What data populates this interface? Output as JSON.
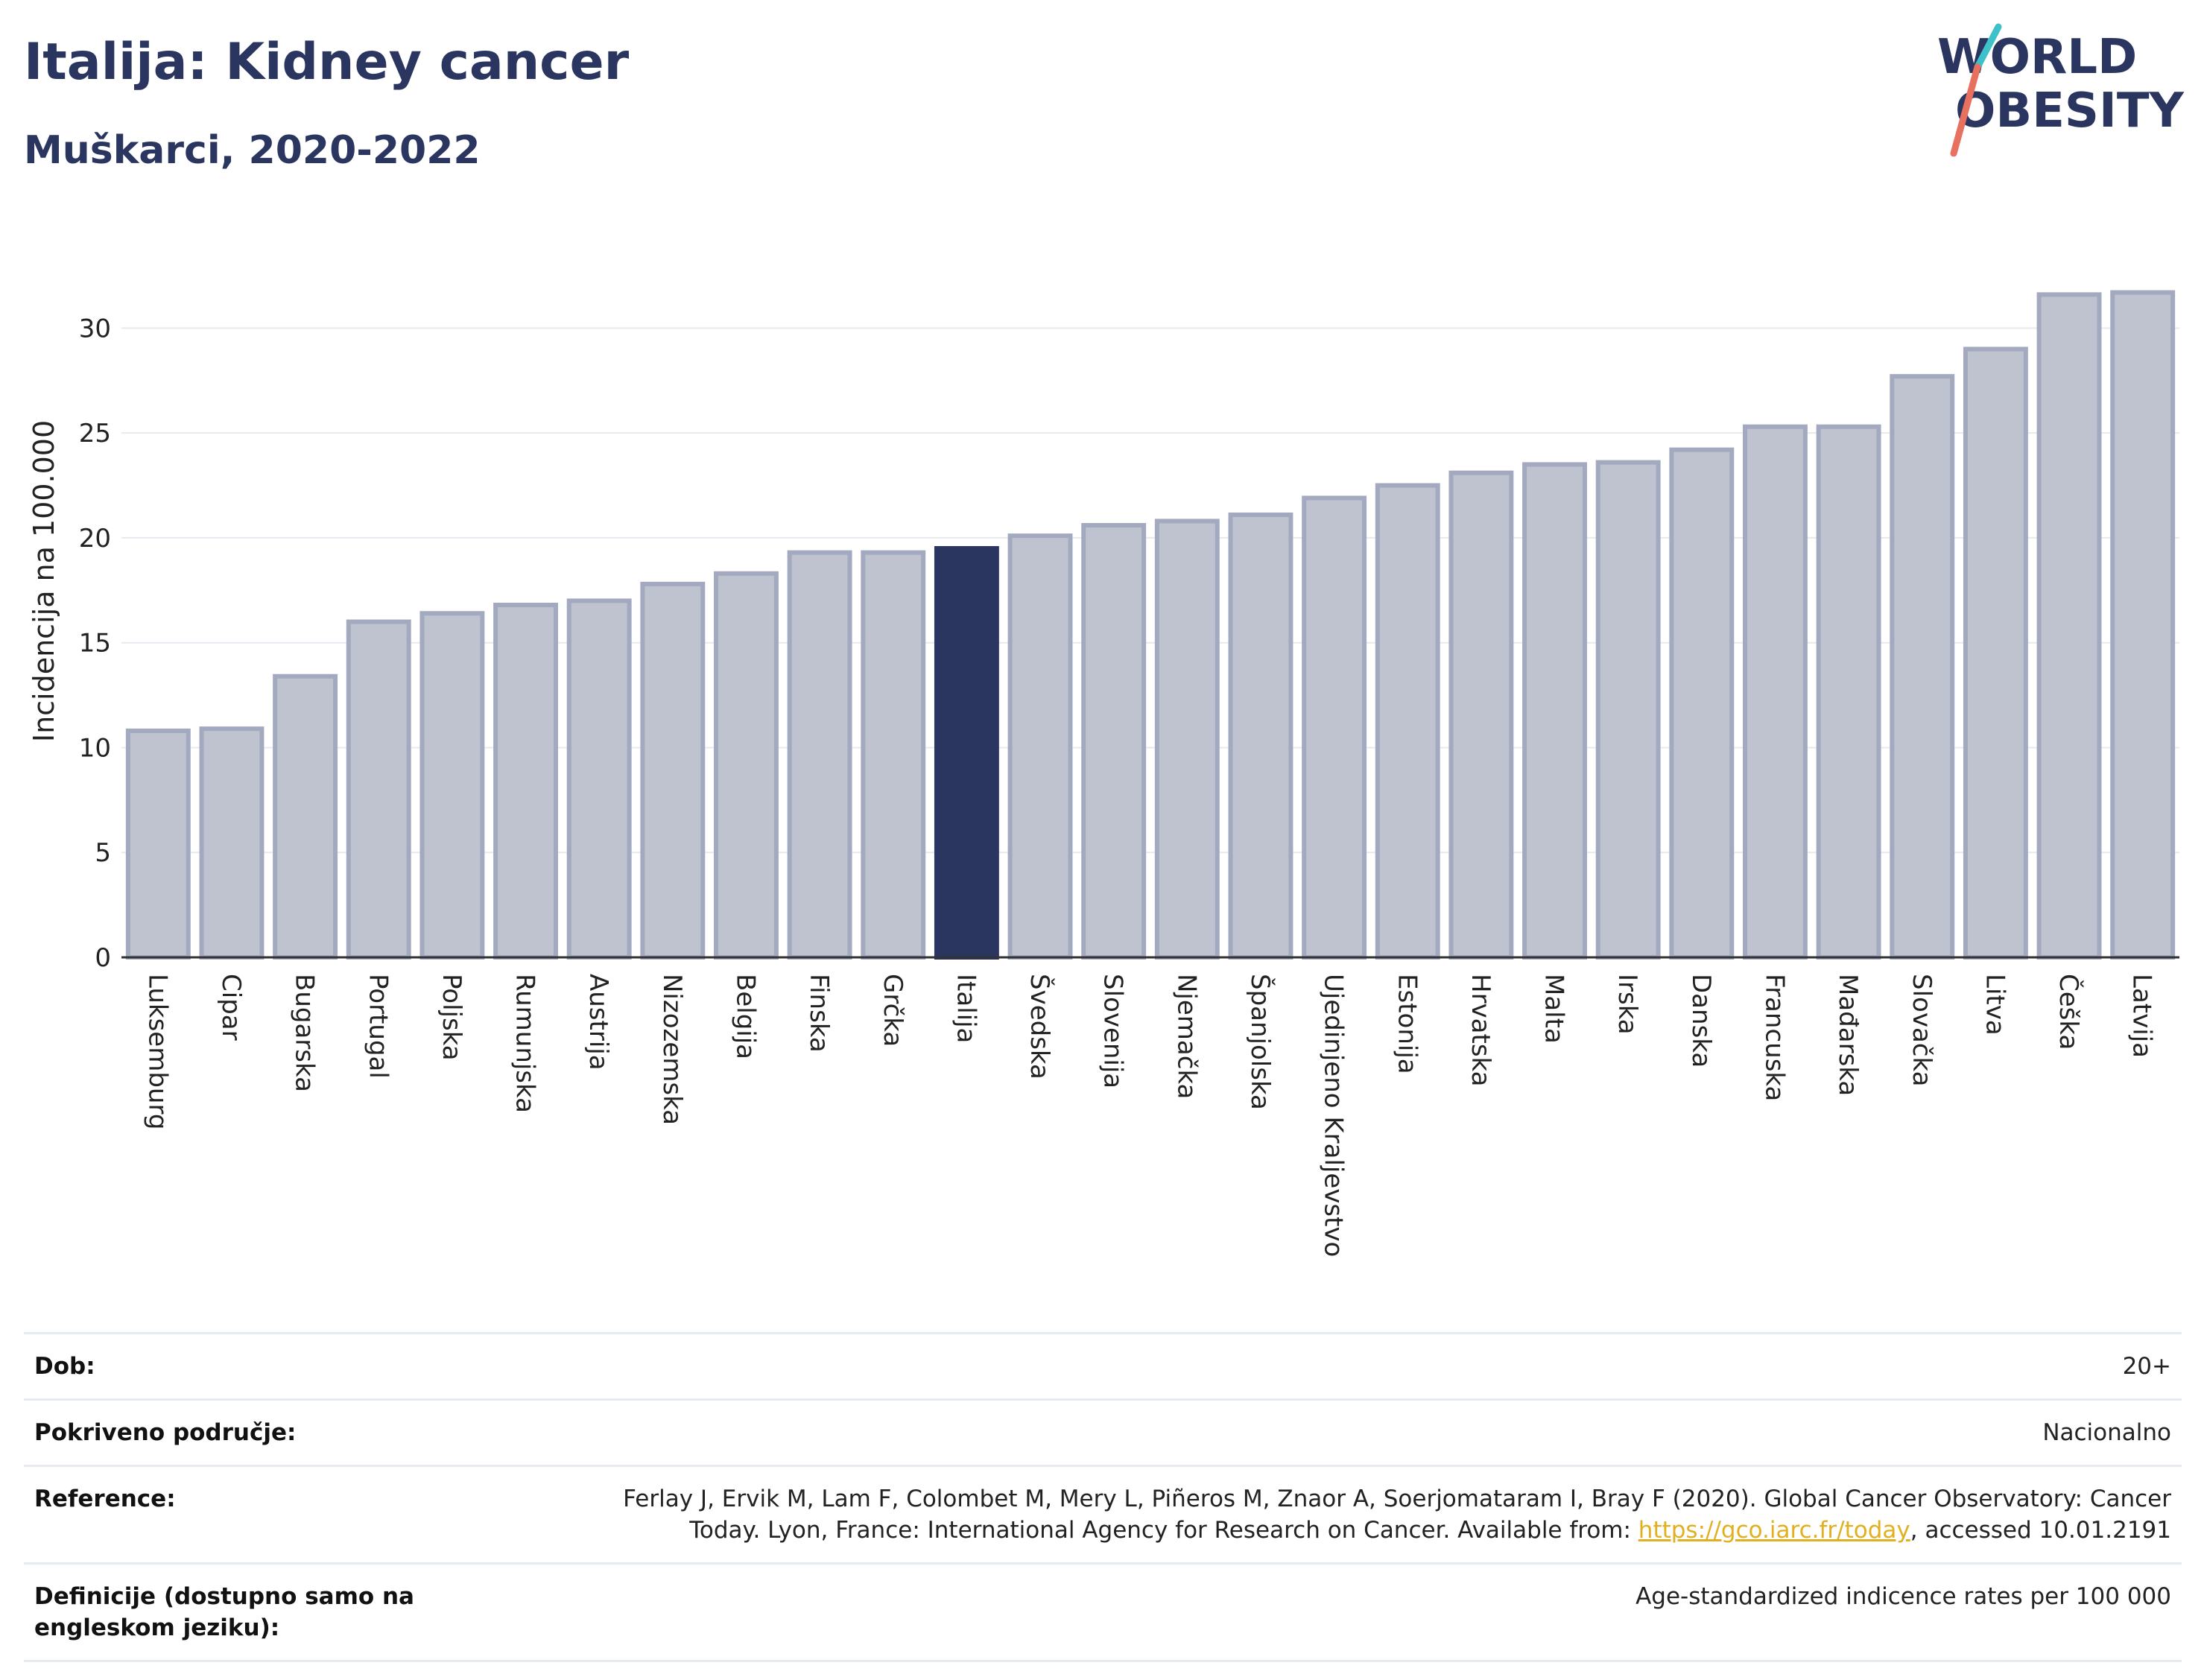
{
  "header": {
    "title": "Italija: Kidney cancer",
    "subtitle": "Muškarci, 2020-2022"
  },
  "logo": {
    "line1": "WORLD",
    "line2": "OBESITY",
    "colors": [
      "#2a3560",
      "#3ec1c9",
      "#e8705f"
    ]
  },
  "chart_data": {
    "type": "bar",
    "ylabel": "Incidencija na 100.000",
    "ylim": [
      0,
      32.5
    ],
    "yticks": [
      0,
      5,
      10,
      15,
      20,
      25,
      30
    ],
    "grid": true,
    "highlight": "Italija",
    "colors": {
      "bar": "#bfc3d0",
      "bar_stroke": "#a3a9bf",
      "highlight": "#2a3560"
    },
    "categories": [
      "Luksemburg",
      "Cipar",
      "Bugarska",
      "Portugal",
      "Poljska",
      "Rumunjska",
      "Austrija",
      "Nizozemska",
      "Belgija",
      "Finska",
      "Grčka",
      "Italija",
      "Švedska",
      "Slovenija",
      "Njemačka",
      "Španjolska",
      "Ujedinjeno Kraljevstvo",
      "Estonija",
      "Hrvatska",
      "Malta",
      "Irska",
      "Danska",
      "Francuska",
      "Mađarska",
      "Slovačka",
      "Litva",
      "Češka",
      "Latvija"
    ],
    "values": [
      10.8,
      10.9,
      13.4,
      16.0,
      16.4,
      16.8,
      17.0,
      17.8,
      18.3,
      19.3,
      19.3,
      19.5,
      20.1,
      20.6,
      20.8,
      21.1,
      21.9,
      22.5,
      23.1,
      23.5,
      23.6,
      24.2,
      25.3,
      25.3,
      27.7,
      29.0,
      31.6,
      31.7
    ]
  },
  "meta": {
    "age": {
      "label": "Dob:",
      "value": "20+"
    },
    "coverage": {
      "label": "Pokriveno područje:",
      "value": "Nacionalno"
    },
    "reference": {
      "label": "Reference:",
      "text1": "Ferlay J, Ervik M, Lam F, Colombet M, Mery L, Piñeros M, Znaor A, Soerjomataram I, Bray F (2020). Global Cancer Observatory: Cancer Today. Lyon, France: International Agency for Research on Cancer. Available from: ",
      "link": "https://gco.iarc.fr/today",
      "text2": ", accessed 10.01.2191"
    },
    "definition": {
      "label": "Definicije (dostupno samo na engleskom jeziku):",
      "value": "Age-standardized indicence rates per 100 000"
    }
  }
}
